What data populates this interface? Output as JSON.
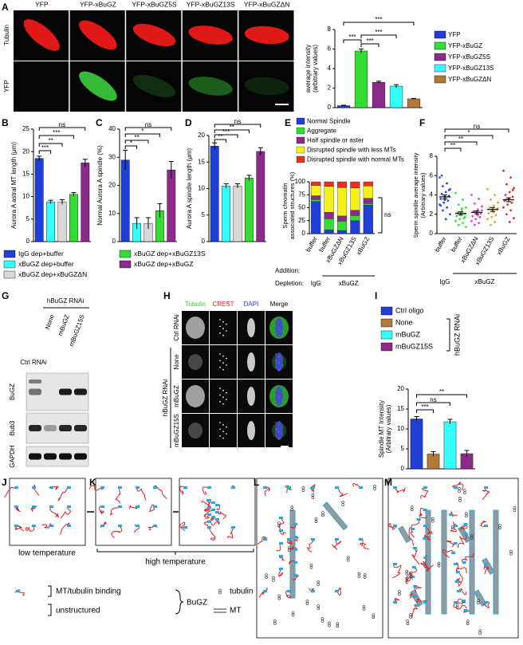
{
  "chart_data": [
    {
      "type": "bar",
      "ylabel": [
        "average intensity",
        "(arbitrary values)"
      ],
      "categories": [
        "YFP",
        "YFP-xBuGZ",
        "YFP-xBuGZ5S",
        "YFP-xBuGZ13S",
        "YFP-xBuGZΔN"
      ],
      "values": [
        0.2,
        5.8,
        2.6,
        2.2,
        0.9
      ],
      "errors": [
        0.05,
        0.2,
        0.1,
        0.15,
        0.05
      ],
      "colors": [
        "#1f3fd6",
        "#33dd33",
        "#8b2a8b",
        "#33ffff",
        "#b07a3a"
      ],
      "ylim": [
        0,
        8
      ],
      "yticks": [
        0,
        2,
        4,
        6,
        8
      ],
      "significance": [
        "***",
        "***",
        "***",
        "***"
      ]
    },
    {
      "type": "bar",
      "ylabel": [
        "Aurora A astral MT length (μm)"
      ],
      "categories": [
        "IgG dep+buffer",
        "xBuGZ dep+buffer",
        "xBuGZ dep+xBuGZΔN",
        "xBuGZ dep+xBuGZ13S",
        "xBuGZ dep+xBuGZ"
      ],
      "values": [
        18.5,
        8.8,
        8.8,
        10.5,
        17.5
      ],
      "errors": [
        0.5,
        0.4,
        0.5,
        0.4,
        0.8
      ],
      "colors": [
        "#1f3fd6",
        "#33ffff",
        "#d8d8d8",
        "#33dd33",
        "#8b2a8b"
      ],
      "ylim": [
        0,
        25
      ],
      "yticks": [
        0,
        5,
        10,
        15,
        20,
        25
      ],
      "significance": [
        "ns",
        "***",
        "**",
        "***"
      ]
    },
    {
      "type": "bar",
      "ylabel": [
        "Normal Aurora A spindle (%)"
      ],
      "values": [
        29,
        6.5,
        6.5,
        11,
        25.5
      ],
      "errors": [
        3.5,
        2,
        2,
        2.5,
        3
      ],
      "colors": [
        "#1f3fd6",
        "#33ffff",
        "#d8d8d8",
        "#33dd33",
        "#8b2a8b"
      ],
      "ylim": [
        0,
        40
      ],
      "yticks": [
        0,
        10,
        20,
        30,
        40
      ],
      "significance": [
        "ns",
        "*",
        "**",
        "*"
      ]
    },
    {
      "type": "bar",
      "ylabel": [
        "Aurora A spindle length (μm)"
      ],
      "values": [
        18,
        10.5,
        10.5,
        12,
        17
      ],
      "errors": [
        0.6,
        0.4,
        0.4,
        0.5,
        0.7
      ],
      "colors": [
        "#1f3fd6",
        "#33ffff",
        "#d8d8d8",
        "#33dd33",
        "#8b2a8b"
      ],
      "ylim": [
        0,
        20
      ],
      "yticks": [
        0,
        5,
        10,
        15,
        20
      ],
      "significance": [
        "ns",
        "**",
        "***",
        "**"
      ]
    },
    {
      "type": "stacked_bar",
      "ylabel": [
        "Sperm chromatin",
        "associated structures (%)"
      ],
      "categories": [
        "buffer",
        "buffer",
        "xBuGZΔN",
        "xBuGZ13S",
        "xBuGZ"
      ],
      "series": [
        {
          "name": "Normal Spindle",
          "color": "#1f3fd6",
          "values": [
            62,
            7,
            6,
            25,
            55
          ]
        },
        {
          "name": "Aggregate",
          "color": "#33dd33",
          "values": [
            4,
            22,
            18,
            10,
            3
          ]
        },
        {
          "name": "Half spindle or aster",
          "color": "#8b2a8b",
          "values": [
            7,
            12,
            10,
            10,
            10
          ]
        },
        {
          "name": "Disrupted spindle with less MTs",
          "color": "#f2f21a",
          "values": [
            20,
            50,
            55,
            43,
            24
          ]
        },
        {
          "name": "Disrupted spindle with normal MTs",
          "color": "#e8321e",
          "values": [
            7,
            9,
            11,
            12,
            8
          ]
        }
      ],
      "ylim": [
        0,
        100
      ],
      "yticks": [
        0,
        25,
        50,
        75,
        100
      ],
      "significance": [
        "ns"
      ],
      "addition_label": "Addition:",
      "depletion_label": "Depletion:",
      "depletion": [
        "IgG",
        "xBuGZ"
      ]
    },
    {
      "type": "scatter",
      "ylabel": [
        "Sperm spindle average intensity",
        "(Arbitrary values)"
      ],
      "categories": [
        "buffer",
        "buffer",
        "xBuGZΔN",
        "xBuGZ13S",
        "xBuGZ"
      ],
      "colors": [
        "#2b4fd6",
        "#3ddc3d",
        "#dd44dd",
        "#f0a030",
        "#e03030"
      ],
      "points": [
        [
          5.8,
          5.2,
          4.9,
          4.6,
          4.3,
          4.1,
          3.9,
          3.8,
          3.6,
          3.4,
          3.2,
          3.0,
          2.7,
          2.4,
          2.0,
          1.5,
          6.0,
          4.5,
          3.5,
          2.9
        ],
        [
          4.2,
          3.5,
          3.0,
          2.7,
          2.4,
          2.2,
          2.0,
          1.9,
          1.8,
          1.6,
          1.5,
          1.3,
          1.1,
          0.9,
          0.7,
          2.6,
          2.1,
          1.7
        ],
        [
          4.0,
          3.6,
          3.1,
          2.8,
          2.5,
          2.3,
          2.1,
          2.0,
          1.8,
          1.7,
          1.5,
          1.3,
          1.1,
          0.9,
          2.4,
          1.9
        ],
        [
          4.6,
          4.0,
          3.5,
          3.2,
          2.9,
          2.7,
          2.5,
          2.3,
          2.1,
          1.9,
          1.7,
          1.5,
          1.2,
          0.9,
          2.6,
          2.2
        ],
        [
          6.5,
          5.8,
          5.1,
          4.7,
          4.3,
          4.0,
          3.8,
          3.6,
          3.4,
          3.2,
          3.0,
          2.7,
          2.4,
          2.0,
          1.6,
          1.2,
          3.5,
          4.5
        ]
      ],
      "values": [
        3.8,
        2.1,
        2.2,
        2.5,
        3.5
      ],
      "errors": [
        0.2,
        0.15,
        0.15,
        0.2,
        0.2
      ],
      "ylim": [
        0,
        8
      ],
      "yticks": [
        0,
        2,
        4,
        6,
        8
      ],
      "significance": [
        "ns",
        "*",
        "**",
        "**"
      ],
      "depletion": [
        "IgG",
        "xBuGZ"
      ]
    },
    {
      "type": "bar",
      "ylabel": [
        "Spindle MT Intensity",
        "(Arbitrary values)"
      ],
      "categories": [
        "Ctrl oligo",
        "None",
        "mBuGZ",
        "mBuGZ15S"
      ],
      "legend_group": "hBuGZ RNAi",
      "values": [
        12.5,
        3.7,
        11.8,
        3.8
      ],
      "errors": [
        0.6,
        0.6,
        0.6,
        0.8
      ],
      "colors": [
        "#1f3fd6",
        "#b07a3a",
        "#33ffff",
        "#8b2a8b"
      ],
      "ylim": [
        0,
        20
      ],
      "yticks": [
        0,
        5,
        10,
        15,
        20
      ],
      "significance": [
        "**",
        "ns",
        "***"
      ]
    }
  ],
  "panel_letters": [
    "A",
    "B",
    "C",
    "D",
    "E",
    "F",
    "G",
    "H",
    "I",
    "J",
    "K",
    "L",
    "M"
  ],
  "panel_a": {
    "rows": [
      "Tubulin",
      "YFP"
    ]
  },
  "panel_g": {
    "group": "hBuGZ RNAi",
    "lanes": [
      "Ctrl RNAi",
      "None",
      "mBuGZ",
      "mBuGZ15S"
    ],
    "bands": [
      "BuGZ",
      "Bub3",
      "GAPDH"
    ]
  },
  "panel_h": {
    "columns": [
      "Tubulin",
      "CREST",
      "DAPI",
      "Merge"
    ],
    "rows": [
      "Ctrl RNAi",
      "None",
      "mBuGZ",
      "mBuGZ15S"
    ],
    "group": "hBuGZ RNAi"
  },
  "panel_jm": {
    "low": "low temperature",
    "high": "high temperature",
    "binding": "MT/tubulin binding",
    "unstructured": "unstructured",
    "bugz": "BuGZ",
    "tubulin": "tubulin",
    "mt": "MT"
  }
}
